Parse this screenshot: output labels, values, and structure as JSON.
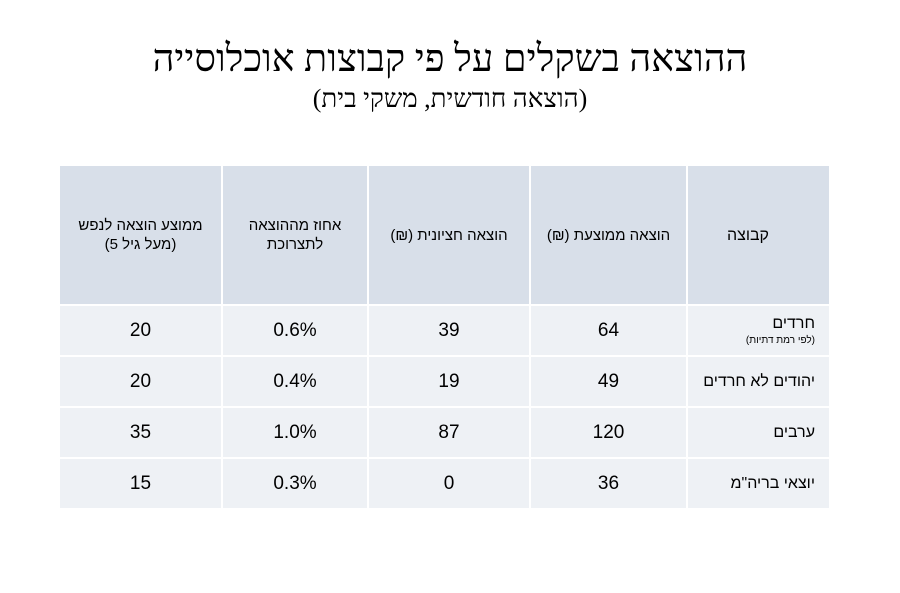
{
  "title": "ההוצאה בשקלים על פי קבוצות אוכלוסייה",
  "subtitle": "(הוצאה חודשית, משקי בית)",
  "table": {
    "headers": {
      "group": "קבוצה",
      "average": "הוצאה ממוצעת (₪)",
      "median": "הוצאה חציונית (₪)",
      "percent": "אחוז מההוצאה לתצרוכת",
      "per_capita_line1": "ממוצע הוצאה לנפש",
      "per_capita_line2": "(מעל גיל 5)"
    },
    "rows": [
      {
        "group": "חרדים",
        "group_note": "(לפי רמת דתיות)",
        "average": "64",
        "median": "39",
        "percent": "0.6%",
        "per_capita": "20"
      },
      {
        "group": "יהודים לא חרדים",
        "average": "49",
        "median": "19",
        "percent": "0.4%",
        "per_capita": "20"
      },
      {
        "group": "ערבים",
        "average": "120",
        "median": "87",
        "percent": "1.0%",
        "per_capita": "35"
      },
      {
        "group": "יוצאי בריה\"מ",
        "average": "36",
        "median": "0",
        "percent": "0.3%",
        "per_capita": "15"
      }
    ]
  }
}
